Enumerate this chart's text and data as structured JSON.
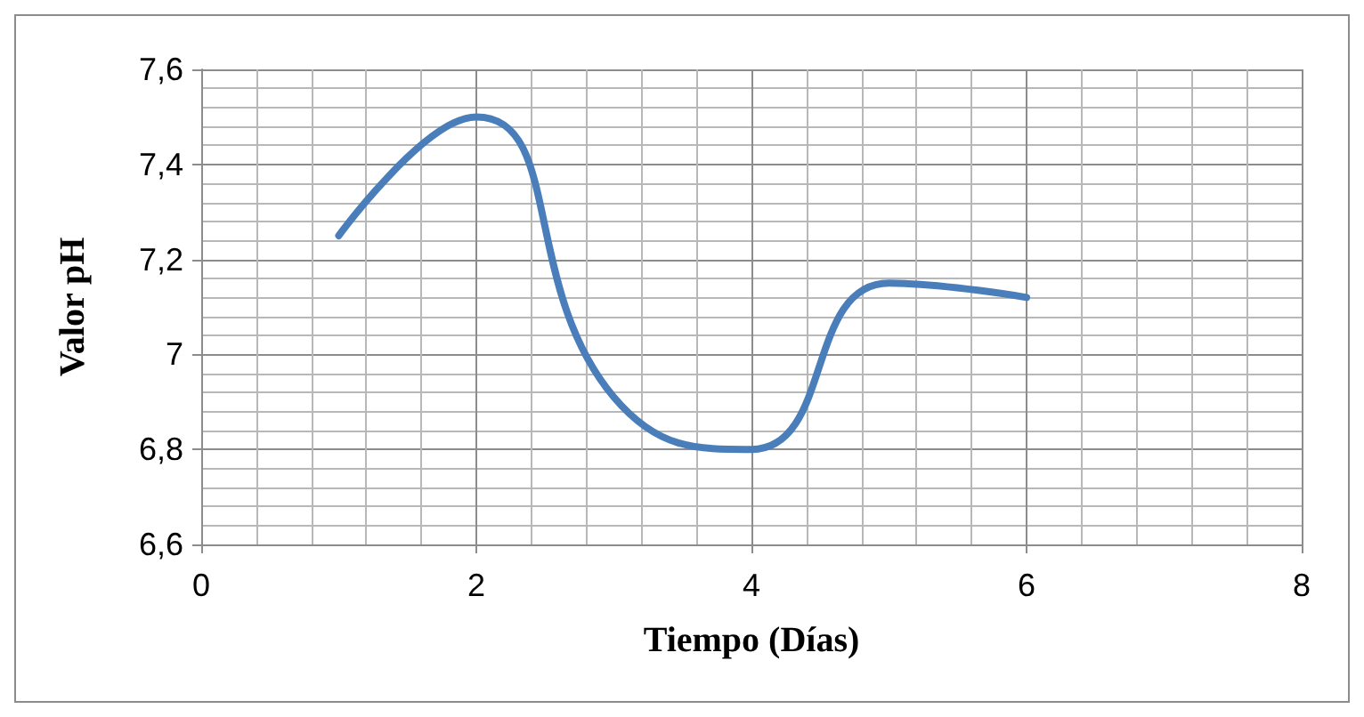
{
  "chart_data": {
    "type": "line",
    "xlabel": "Tiempo (Días)",
    "ylabel": "Valor pH",
    "x": [
      1,
      2,
      3,
      4,
      5,
      6
    ],
    "series": [
      {
        "color": "#4a7ebb",
        "values": [
          7.25,
          7.5,
          6.91,
          6.8,
          7.15,
          7.12
        ]
      }
    ],
    "xlim": [
      0,
      8
    ],
    "xticks": [
      0,
      2,
      4,
      6,
      8
    ],
    "ylim": [
      6.6,
      7.6
    ],
    "yticks": [
      {
        "value": 6.6,
        "label": "6,6"
      },
      {
        "value": 6.8,
        "label": "6,8"
      },
      {
        "value": 7,
        "label": "7"
      },
      {
        "value": 7.2,
        "label": "7,2"
      },
      {
        "value": 7.4,
        "label": "7,4"
      },
      {
        "value": 7.6,
        "label": "7,6"
      }
    ],
    "grid": true,
    "marker": "none",
    "line_style": "solid"
  }
}
